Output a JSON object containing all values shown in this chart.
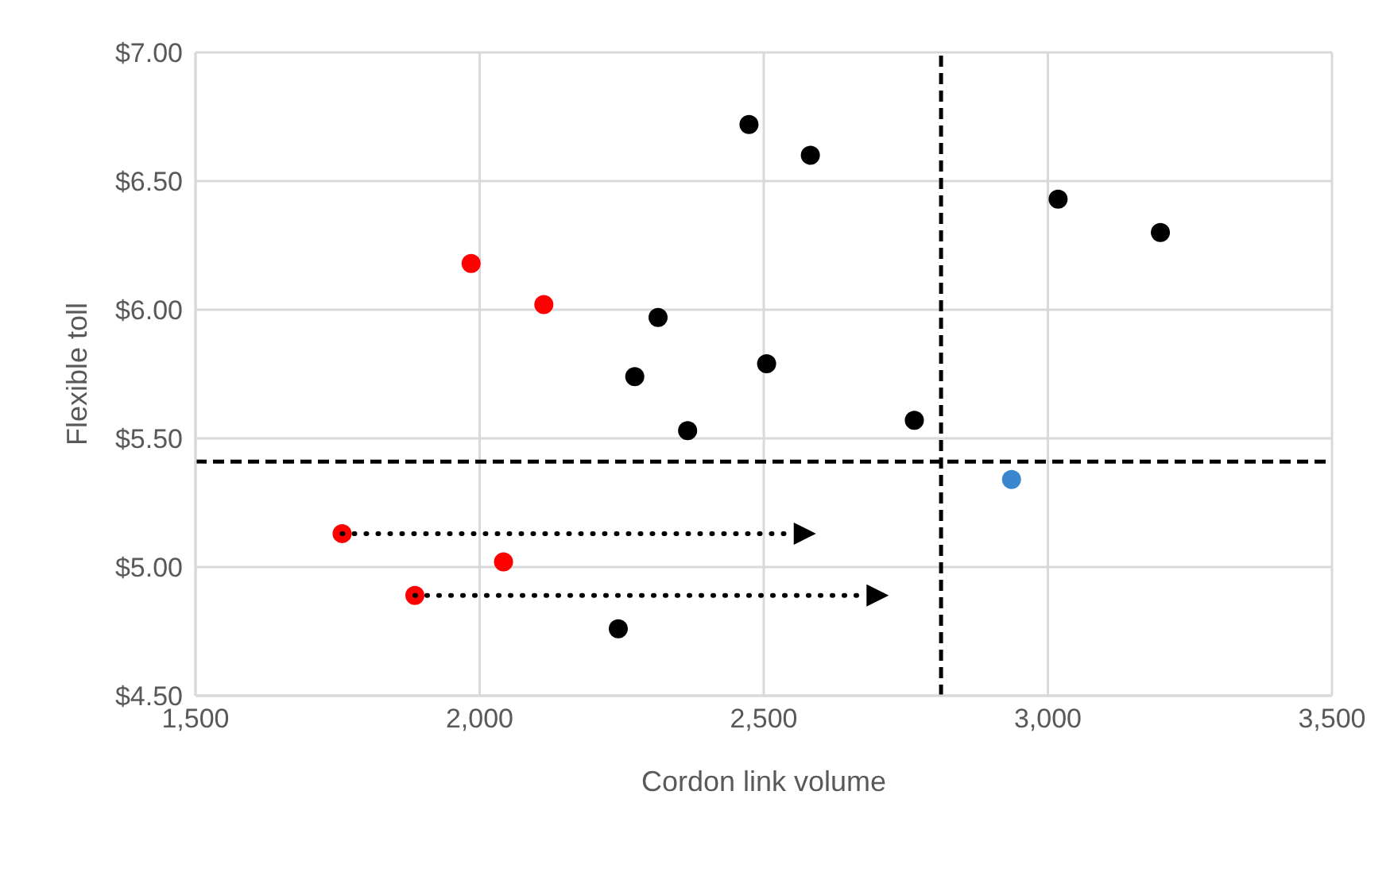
{
  "chart_data": {
    "type": "scatter",
    "xlabel": "Cordon link volume",
    "ylabel": "Flexible toll",
    "xlim": [
      1500,
      3500
    ],
    "ylim": [
      4.5,
      7
    ],
    "xticks": [
      {
        "value": 1500,
        "label": "1,500"
      },
      {
        "value": 2000,
        "label": "2,000"
      },
      {
        "value": 2500,
        "label": "2,500"
      },
      {
        "value": 3000,
        "label": "3,000"
      },
      {
        "value": 3500,
        "label": "3,500"
      }
    ],
    "yticks": [
      {
        "value": 4.5,
        "label": "$4.50"
      },
      {
        "value": 5,
        "label": "$5.00"
      },
      {
        "value": 5.5,
        "label": "$5.50"
      },
      {
        "value": 6,
        "label": "$6.00"
      },
      {
        "value": 6.5,
        "label": "$6.50"
      },
      {
        "value": 7,
        "label": "$7.00"
      }
    ],
    "grid": true,
    "legend": false,
    "marker": "circle",
    "series": [
      {
        "color": "#000000",
        "x": [
          2314,
          2273,
          2366,
          2474,
          2582,
          2505,
          2765,
          3018,
          3198,
          2244
        ],
        "values": [
          5.97,
          5.74,
          5.53,
          6.72,
          6.6,
          5.79,
          5.57,
          6.43,
          6.3,
          4.76
        ]
      },
      {
        "color": "#ff0000",
        "x": [
          1985,
          2113,
          2042
        ],
        "values": [
          6.18,
          6.02,
          5.02
        ]
      },
      {
        "color": "#3a87d0",
        "x": [
          2936
        ],
        "values": [
          5.34
        ]
      },
      {
        "color": "#ff0000",
        "x": [
          1758,
          1886
        ],
        "values": [
          5.13,
          4.89
        ]
      }
    ],
    "ref_lines": [
      {
        "axis": "x",
        "value": 2812,
        "color": "#000000",
        "line_style": "dashed"
      },
      {
        "axis": "y",
        "value": 5.41,
        "color": "#000000",
        "line_style": "dashed"
      }
    ]
  }
}
